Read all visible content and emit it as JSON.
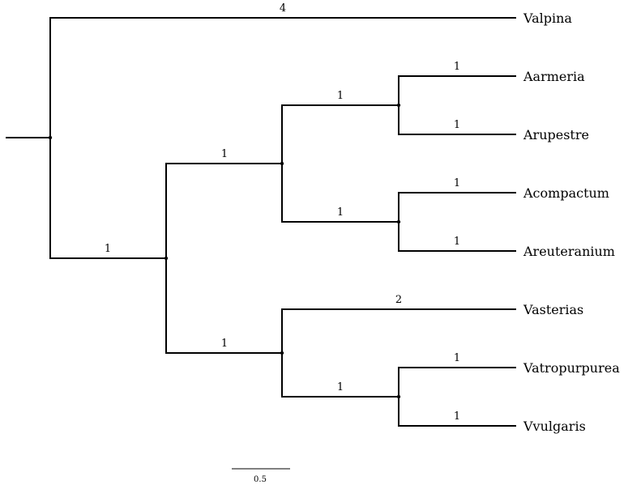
{
  "tree": {
    "leaves": [
      {
        "id": "Valpina",
        "label": "Valpina"
      },
      {
        "id": "Aarmeria",
        "label": "Aarmeria"
      },
      {
        "id": "Arupestre",
        "label": "Arupestre"
      },
      {
        "id": "Acompactum",
        "label": "Acompactum"
      },
      {
        "id": "Areuteranium",
        "label": "Areuteranium"
      },
      {
        "id": "Vasterias",
        "label": "Vasterias"
      },
      {
        "id": "Vatropurpurea",
        "label": "Vatropurpurea"
      },
      {
        "id": "Vvulgaris",
        "label": "Vvulgaris"
      }
    ],
    "branch_lengths": {
      "Valpina": "4",
      "Aarmeria": "1",
      "Arupestre": "1",
      "Acompactum": "1",
      "Areuteranium": "1",
      "Vasterias": "2",
      "Vatropurpurea": "1",
      "Vvulgaris": "1",
      "clade_A": "1",
      "clade_B": "1",
      "clade_Aarm_Arup": "1",
      "clade_Acomp_Areut": "1",
      "clade_Vatro_Vvulg": "1"
    },
    "scale_bar": {
      "label": "0.5"
    }
  }
}
